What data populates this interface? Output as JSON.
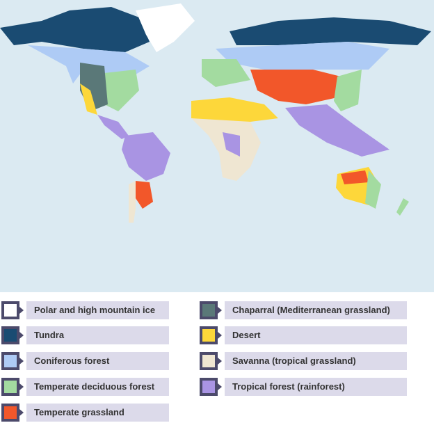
{
  "map": {
    "ocean_color": "#dbeaf2"
  },
  "legend": [
    {
      "label": "Polar and high mountain ice",
      "color": "#ffffff"
    },
    {
      "label": "Tundra",
      "color": "#1a4b72"
    },
    {
      "label": "Coniferous forest",
      "color": "#aecbf5"
    },
    {
      "label": "Temperate deciduous forest",
      "color": "#a3dba0"
    },
    {
      "label": "Temperate grassland",
      "color": "#f2572a"
    },
    {
      "label": "Chaparral (Mediterranean grassland)",
      "color": "#5a7878"
    },
    {
      "label": "Desert",
      "color": "#fdd73a"
    },
    {
      "label": "Savanna (tropical grassland)",
      "color": "#efe6d2"
    },
    {
      "label": "Tropical forest (rainforest)",
      "color": "#a994e3"
    }
  ]
}
